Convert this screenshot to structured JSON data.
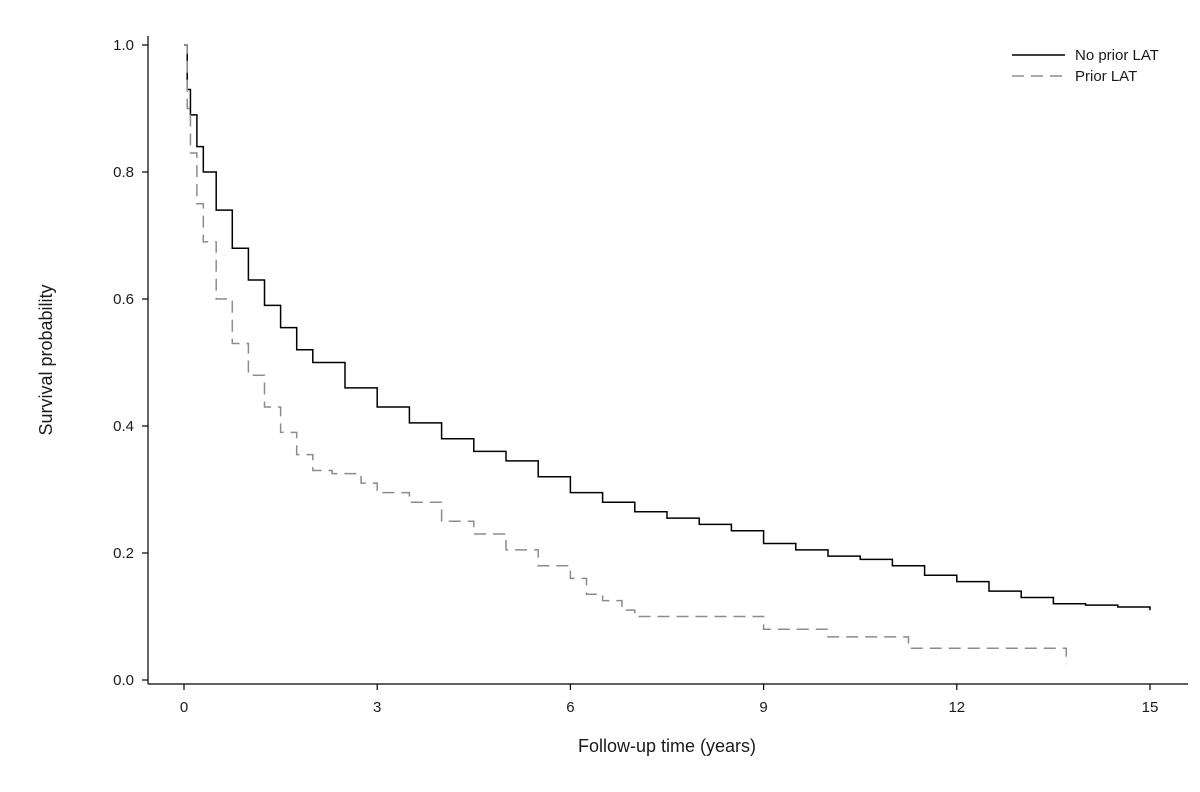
{
  "chart_data": {
    "type": "line",
    "title": "",
    "xlabel": "Follow-up time (years)",
    "ylabel": "Survival probability",
    "xlim": [
      0,
      15
    ],
    "ylim": [
      0,
      1
    ],
    "x_ticks": [
      "0",
      "3",
      "6",
      "9",
      "12",
      "15"
    ],
    "y_ticks": [
      "0.0",
      "0.2",
      "0.4",
      "0.6",
      "0.8",
      "1.0"
    ],
    "grid": false,
    "legend_position": "top-right",
    "series": [
      {
        "name": "No prior LAT",
        "style": "solid",
        "color": "#000000",
        "x": [
          0,
          0.05,
          0.1,
          0.2,
          0.3,
          0.5,
          0.75,
          1.0,
          1.25,
          1.5,
          1.75,
          2.0,
          2.5,
          3.0,
          3.5,
          4.0,
          4.5,
          5.0,
          5.5,
          6.0,
          6.5,
          7.0,
          7.5,
          8.0,
          8.5,
          9.0,
          9.5,
          10.0,
          10.5,
          11.0,
          11.5,
          12.0,
          12.5,
          13.0,
          13.5,
          14.0,
          14.5,
          15.0
        ],
        "y": [
          1.0,
          0.93,
          0.89,
          0.84,
          0.8,
          0.74,
          0.68,
          0.63,
          0.59,
          0.555,
          0.52,
          0.5,
          0.46,
          0.43,
          0.405,
          0.38,
          0.36,
          0.345,
          0.32,
          0.295,
          0.28,
          0.265,
          0.255,
          0.245,
          0.235,
          0.215,
          0.205,
          0.195,
          0.19,
          0.18,
          0.165,
          0.155,
          0.14,
          0.13,
          0.12,
          0.118,
          0.115,
          0.11
        ]
      },
      {
        "name": "Prior LAT",
        "style": "dashed",
        "color": "#8c8c8c",
        "x": [
          0,
          0.05,
          0.1,
          0.2,
          0.3,
          0.5,
          0.75,
          1.0,
          1.25,
          1.5,
          1.75,
          2.0,
          2.3,
          2.75,
          3.0,
          3.5,
          4.0,
          4.5,
          5.0,
          5.5,
          6.0,
          6.25,
          6.5,
          6.8,
          7.0,
          8.0,
          8.85,
          9.0,
          9.85,
          10.0,
          11.0,
          11.25,
          12.0,
          13.0,
          13.45,
          13.7
        ],
        "y": [
          1.0,
          0.9,
          0.83,
          0.75,
          0.69,
          0.6,
          0.53,
          0.48,
          0.43,
          0.39,
          0.355,
          0.33,
          0.325,
          0.31,
          0.295,
          0.28,
          0.25,
          0.23,
          0.205,
          0.18,
          0.16,
          0.135,
          0.125,
          0.11,
          0.1,
          0.1,
          0.1,
          0.08,
          0.08,
          0.068,
          0.068,
          0.05,
          0.05,
          0.05,
          0.05,
          0.025
        ]
      }
    ]
  }
}
